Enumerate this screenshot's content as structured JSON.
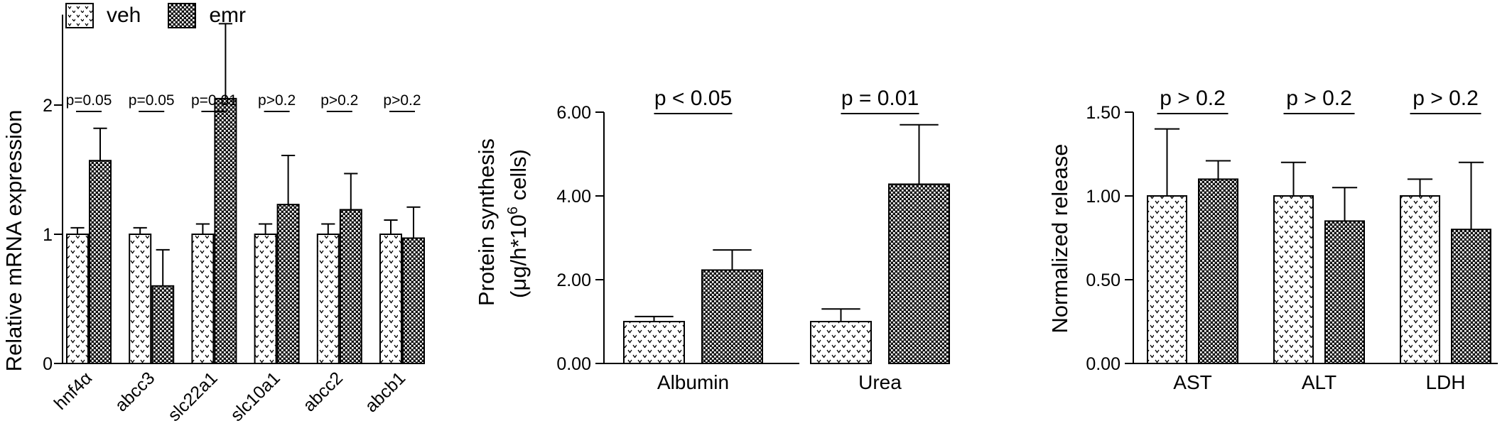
{
  "legend": {
    "items": [
      {
        "label": "veh",
        "pattern": "veh"
      },
      {
        "label": "emr",
        "pattern": "emr"
      }
    ]
  },
  "colors": {
    "veh_fill": "#ffffff",
    "emr_fill": "#111111",
    "ink": "#000000"
  },
  "chart_data": [
    {
      "type": "bar",
      "title": "",
      "xlabel": "",
      "ylabel": "Relative mRNA expression",
      "ylim": [
        0,
        2.7
      ],
      "yticks": [
        "0",
        "1",
        "2"
      ],
      "categories": [
        "hnf4α",
        "abcc3",
        "slc22a1",
        "slc10a1",
        "abcc2",
        "abcb1"
      ],
      "series": [
        {
          "name": "veh",
          "values": [
            1.0,
            1.0,
            1.0,
            1.0,
            1.0,
            1.0
          ],
          "errors": [
            0.05,
            0.05,
            0.08,
            0.08,
            0.08,
            0.11
          ]
        },
        {
          "name": "emr",
          "values": [
            1.57,
            0.6,
            2.05,
            1.23,
            1.19,
            0.97
          ],
          "errors": [
            0.25,
            0.28,
            0.58,
            0.38,
            0.28,
            0.24
          ]
        }
      ],
      "annotations": [
        "p=0.05",
        "p=0.05",
        "p=0.01",
        "p>0.2",
        "p>0.2",
        "p>0.2"
      ]
    },
    {
      "type": "bar",
      "title": "",
      "xlabel": "",
      "ylabel": "Protein synthesis",
      "ylabel2_prefix": "(μg/h*10",
      "ylabel2_sup": "6",
      "ylabel2_suffix": " cells)",
      "ylim": [
        0,
        6.0
      ],
      "yticks": [
        "0.00",
        "2.00",
        "4.00",
        "6.00"
      ],
      "categories": [
        "Albumin",
        "Urea"
      ],
      "series": [
        {
          "name": "veh",
          "values": [
            1.0,
            1.0
          ],
          "errors": [
            0.12,
            0.3
          ]
        },
        {
          "name": "emr",
          "values": [
            2.23,
            4.28
          ],
          "errors": [
            0.48,
            1.42
          ]
        }
      ],
      "annotations": [
        "p < 0.05",
        "p = 0.01"
      ]
    },
    {
      "type": "bar",
      "title": "",
      "xlabel": "",
      "ylabel": "Normalized release",
      "ylim": [
        0,
        1.5
      ],
      "yticks": [
        "0.00",
        "0.50",
        "1.00",
        "1.50"
      ],
      "categories": [
        "AST",
        "ALT",
        "LDH"
      ],
      "series": [
        {
          "name": "veh",
          "values": [
            1.0,
            1.0,
            1.0
          ],
          "errors": [
            0.4,
            0.2,
            0.1
          ]
        },
        {
          "name": "emr",
          "values": [
            1.1,
            0.85,
            0.8
          ],
          "errors": [
            0.11,
            0.2,
            0.4
          ]
        }
      ],
      "annotations": [
        "p > 0.2",
        "p > 0.2",
        "p > 0.2"
      ]
    }
  ]
}
